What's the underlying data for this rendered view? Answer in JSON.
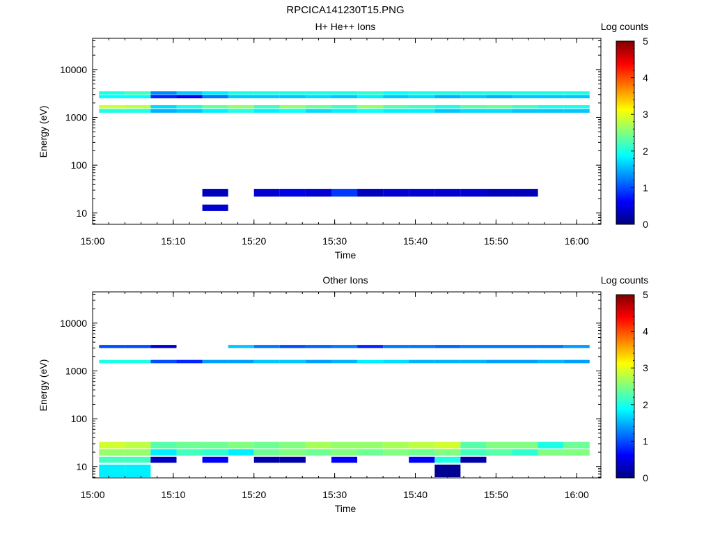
{
  "figure_title": "RPCICA141230T15.PNG",
  "chart_data": [
    {
      "type": "heatmap",
      "title": "H+ He++ Ions",
      "xlabel": "Time",
      "ylabel": "Energy (eV)",
      "colorbar_label": "Log counts",
      "colorbar_ticks": [
        "0",
        "1",
        "2",
        "3",
        "4",
        "5"
      ],
      "x_ticks": [
        "15:00",
        "15:10",
        "15:20",
        "15:30",
        "15:40",
        "15:50",
        "16:00"
      ],
      "y_ticks": [
        "10",
        "100",
        "1000",
        "10000"
      ],
      "y_scale": "log",
      "xlim": [
        "15:00",
        "16:03"
      ],
      "ylim": [
        5.8,
        45000
      ],
      "clim": [
        0,
        5
      ],
      "grid": false,
      "colormap": "jet",
      "time_bins": [
        "15:02:24",
        "15:05:36",
        "15:08:48",
        "15:12:00",
        "15:15:12",
        "15:18:24",
        "15:21:36",
        "15:24:48",
        "15:28:00",
        "15:31:12",
        "15:34:24",
        "15:37:36",
        "15:40:48",
        "15:44:00",
        "15:47:12",
        "15:50:24",
        "15:53:36",
        "15:56:48",
        "16:00:00"
      ],
      "bands": [
        {
          "emin": 1550,
          "emax": 1800,
          "values": [
            2.9,
            2.8,
            1.7,
            2.0,
            2.4,
            2.6,
            2.2,
            2.6,
            2.4,
            2.2,
            2.6,
            2.3,
            2.2,
            2.0,
            2.3,
            2.4,
            2.2,
            2.0,
            2.0
          ]
        },
        {
          "emin": 1250,
          "emax": 1500,
          "values": [
            2.0,
            2.0,
            1.5,
            1.6,
            1.8,
            2.0,
            1.8,
            1.9,
            1.7,
            1.8,
            1.9,
            1.8,
            1.8,
            1.6,
            1.7,
            1.7,
            1.6,
            1.6,
            1.6
          ]
        },
        {
          "emin": 3000,
          "emax": 3500,
          "values": [
            2.0,
            2.2,
            1.3,
            1.6,
            1.8,
            2.0,
            2.0,
            2.0,
            2.0,
            2.0,
            2.1,
            1.9,
            2.0,
            2.0,
            2.0,
            2.0,
            2.0,
            2.0,
            2.0
          ]
        },
        {
          "emin": 2500,
          "emax": 2950,
          "values": [
            1.9,
            1.9,
            0.8,
            0.6,
            1.2,
            1.6,
            1.6,
            1.6,
            1.7,
            1.6,
            1.8,
            1.6,
            1.7,
            1.5,
            1.6,
            1.5,
            1.6,
            1.6,
            1.6
          ]
        },
        {
          "emin": 22,
          "emax": 32,
          "values": [
            null,
            null,
            null,
            null,
            0.3,
            null,
            0.4,
            0.5,
            0.4,
            0.9,
            0.3,
            0.4,
            0.4,
            0.4,
            0.4,
            0.3,
            0.3,
            null,
            null
          ]
        },
        {
          "emin": 11,
          "emax": 15,
          "values": [
            null,
            null,
            null,
            null,
            0.4,
            null,
            null,
            null,
            null,
            null,
            null,
            null,
            null,
            null,
            null,
            null,
            null,
            null,
            null
          ]
        }
      ]
    },
    {
      "type": "heatmap",
      "title": "Other Ions",
      "xlabel": "Time",
      "ylabel": "Energy (eV)",
      "colorbar_label": "Log counts",
      "colorbar_ticks": [
        "0",
        "1",
        "2",
        "3",
        "4",
        "5"
      ],
      "x_ticks": [
        "15:00",
        "15:10",
        "15:20",
        "15:30",
        "15:40",
        "15:50",
        "16:00"
      ],
      "y_ticks": [
        "10",
        "100",
        "1000",
        "10000"
      ],
      "y_scale": "log",
      "xlim": [
        "15:00",
        "16:03"
      ],
      "ylim": [
        5.8,
        45000
      ],
      "clim": [
        0,
        5
      ],
      "grid": false,
      "colormap": "jet",
      "time_bins": [
        "15:02:24",
        "15:05:36",
        "15:08:48",
        "15:12:00",
        "15:15:12",
        "15:18:24",
        "15:21:36",
        "15:24:48",
        "15:28:00",
        "15:31:12",
        "15:34:24",
        "15:37:36",
        "15:40:48",
        "15:44:00",
        "15:47:12",
        "15:50:24",
        "15:53:36",
        "15:56:48",
        "16:00:00"
      ],
      "bands": [
        {
          "emin": 24,
          "emax": 33,
          "values": [
            2.9,
            2.8,
            2.3,
            2.4,
            2.4,
            2.5,
            2.4,
            2.5,
            2.7,
            2.6,
            2.6,
            2.7,
            2.8,
            2.9,
            2.3,
            2.5,
            2.5,
            2.0,
            2.4
          ]
        },
        {
          "emin": 17,
          "emax": 23,
          "values": [
            2.6,
            2.6,
            1.8,
            2.2,
            2.1,
            1.8,
            2.4,
            2.5,
            2.4,
            2.5,
            2.4,
            2.5,
            2.4,
            2.5,
            2.2,
            2.3,
            2.1,
            2.5,
            2.5
          ]
        },
        {
          "emin": 12,
          "emax": 16,
          "values": [
            2.2,
            2.2,
            0.3,
            null,
            0.6,
            null,
            0.2,
            0.2,
            null,
            0.6,
            null,
            null,
            0.6,
            2.0,
            0.2,
            null,
            null,
            null,
            null
          ]
        },
        {
          "emin": 6,
          "emax": 11,
          "values": [
            1.8,
            1.8,
            null,
            null,
            null,
            null,
            null,
            null,
            null,
            null,
            null,
            null,
            null,
            0.1,
            null,
            null,
            null,
            null,
            null
          ]
        },
        {
          "emin": 1450,
          "emax": 1700,
          "values": [
            2.0,
            2.0,
            1.0,
            0.8,
            1.4,
            1.4,
            1.6,
            1.6,
            1.4,
            1.5,
            1.8,
            1.7,
            1.5,
            1.5,
            1.5,
            1.4,
            1.4,
            1.5,
            1.4
          ]
        },
        {
          "emin": 3000,
          "emax": 3500,
          "values": [
            1.0,
            1.0,
            0.4,
            null,
            null,
            1.6,
            1.2,
            1.0,
            1.1,
            1.2,
            0.8,
            1.2,
            1.2,
            1.1,
            1.2,
            1.2,
            1.2,
            1.2,
            1.4
          ]
        }
      ]
    }
  ]
}
